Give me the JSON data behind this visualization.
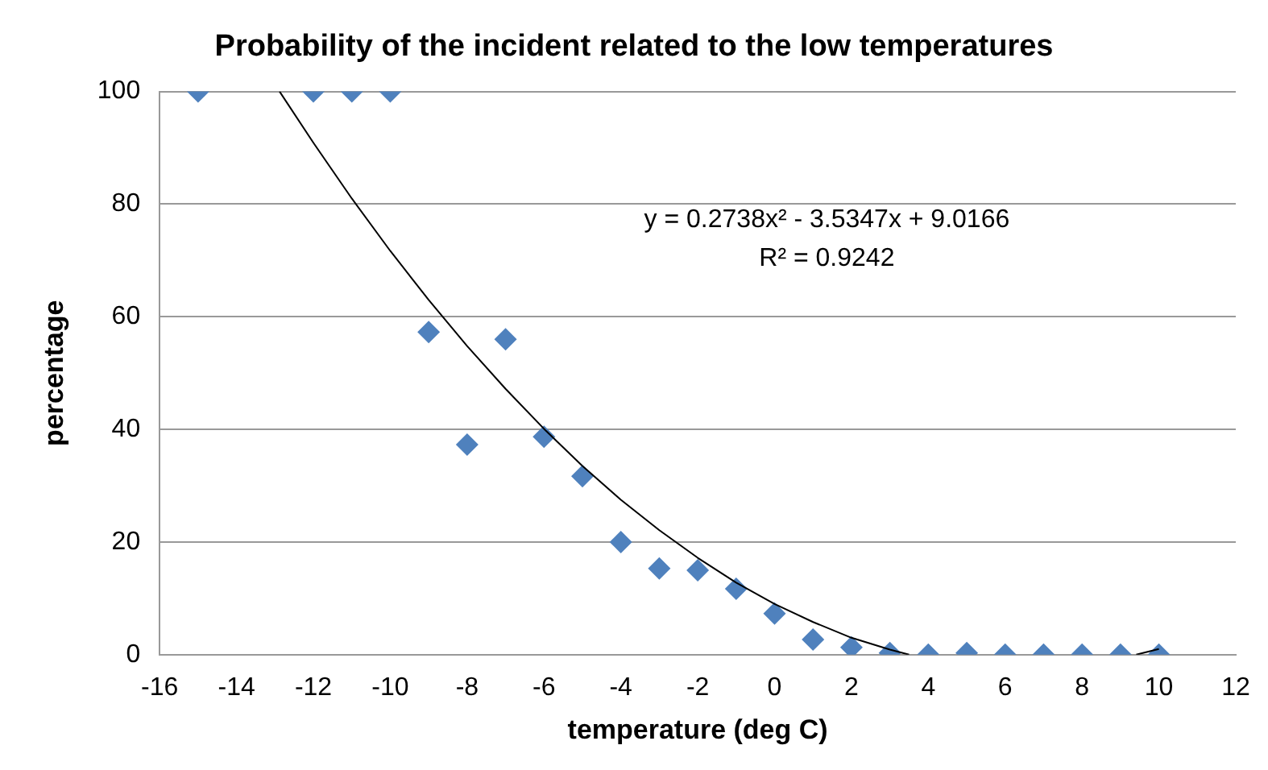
{
  "chart_data": {
    "type": "scatter",
    "title": "Probability of the incident related to the low temperatures",
    "xlabel": "temperature (deg C)",
    "ylabel": "percentage",
    "xlim": [
      -16,
      12
    ],
    "xticks": [
      -16,
      -14,
      -12,
      -10,
      -8,
      -6,
      -4,
      -2,
      0,
      2,
      4,
      6,
      8,
      10,
      12
    ],
    "ylim": [
      0,
      100
    ],
    "yticks": [
      0,
      20,
      40,
      60,
      80,
      100
    ],
    "grid": "y",
    "legend": false,
    "marker": "diamond",
    "annotations": [
      "y = 0.2738x² - 3.5347x + 9.0166",
      "R² = 0.9242"
    ],
    "series": [
      {
        "color": "#4f81bd",
        "x": [
          -15,
          -12,
          -11,
          -10,
          -9,
          -8,
          -7,
          -6,
          -5,
          -4,
          -3,
          -2,
          -1,
          0,
          1,
          2,
          3,
          4,
          5,
          6,
          7,
          8,
          9,
          10
        ],
        "values": [
          100,
          100,
          100,
          100,
          57.3,
          37.3,
          56,
          38.7,
          31.7,
          20,
          15.3,
          15,
          11.7,
          7.3,
          2.7,
          1.3,
          0.3,
          0,
          0.3,
          0,
          0,
          0,
          0,
          0
        ]
      },
      {
        "type": "line",
        "color": "#000000",
        "marker": "none",
        "line_style": "solid",
        "x": [
          -12.88,
          -12,
          -11,
          -10,
          -9,
          -8,
          -7,
          -6,
          -5,
          -4,
          -3,
          -2,
          -1,
          0,
          1,
          2,
          3,
          3.5,
          6.5,
          9.41,
          10
        ],
        "values": [
          100,
          90.9,
          81.0,
          71.7,
          63.0,
          54.8,
          47.2,
          40.1,
          33.5,
          27.5,
          22.1,
          17.2,
          12.8,
          9.0,
          5.8,
          3.0,
          0.9,
          0,
          null,
          0,
          1.0
        ]
      }
    ]
  }
}
